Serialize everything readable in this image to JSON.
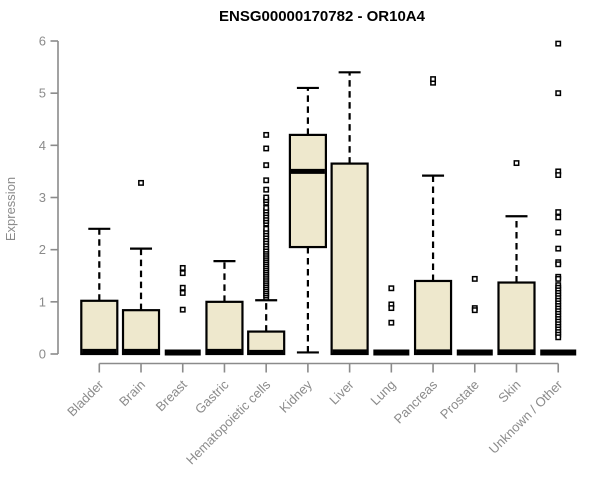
{
  "chart_data": {
    "type": "box",
    "title": "ENSG00000170782 - OR10A4",
    "xlabel": "",
    "ylabel": "Expression",
    "ylim": [
      0,
      6
    ],
    "yticks": [
      0,
      1,
      2,
      3,
      4,
      5,
      6
    ],
    "grid": false,
    "legend": false,
    "colors": {
      "box_fill": "#EEE8CD",
      "box_stroke": "#000000",
      "median": "#000000",
      "whisker": "#000000",
      "outlier_stroke": "#000000",
      "outlier_fill": "#FFFFFF",
      "axis": "#8B8B8B",
      "title": "#000000"
    },
    "categories": [
      "Bladder",
      "Brain",
      "Breast",
      "Gastric",
      "Hematopoietic cells",
      "Kidney",
      "Liver",
      "Lung",
      "Pancreas",
      "Prostate",
      "Skin",
      "Unknown / Other"
    ],
    "series": [
      {
        "category": "Bladder",
        "q1": 0,
        "median": 0.05,
        "q3": 1.02,
        "whisker_low": 0,
        "whisker_high": 2.4,
        "outliers": []
      },
      {
        "category": "Brain",
        "q1": 0,
        "median": 0.05,
        "q3": 0.84,
        "whisker_low": 0,
        "whisker_high": 2.02,
        "outliers": [
          3.28
        ]
      },
      {
        "category": "Breast",
        "q1": 0,
        "median": 0,
        "q3": 0,
        "whisker_low": 0,
        "whisker_high": 0,
        "outliers": [
          1.65,
          1.55,
          1.27,
          1.17,
          0.85
        ]
      },
      {
        "category": "Gastric",
        "q1": 0,
        "median": 0.05,
        "q3": 1.0,
        "whisker_low": 0,
        "whisker_high": 1.78,
        "outliers": []
      },
      {
        "category": "Hematopoietic cells",
        "q1": 0,
        "median": 0.03,
        "q3": 0.43,
        "whisker_low": 0,
        "whisker_high": 1.03,
        "outliers": [
          1.08,
          1.12,
          1.16,
          1.2,
          1.24,
          1.28,
          1.32,
          1.36,
          1.4,
          1.44,
          1.48,
          1.52,
          1.56,
          1.6,
          1.64,
          1.68,
          1.72,
          1.76,
          1.8,
          1.84,
          1.88,
          1.92,
          1.96,
          2.0,
          2.05,
          2.1,
          2.15,
          2.2,
          2.25,
          2.3,
          2.35,
          2.4,
          2.5,
          2.55,
          2.6,
          2.65,
          2.7,
          2.75,
          2.8,
          2.9,
          2.95,
          3.0,
          3.15,
          3.33,
          3.62,
          3.94,
          4.2
        ]
      },
      {
        "category": "Kidney",
        "q1": 2.05,
        "median": 3.5,
        "q3": 4.2,
        "whisker_low": 0.03,
        "whisker_high": 5.1,
        "outliers": []
      },
      {
        "category": "Liver",
        "q1": 0,
        "median": 0.04,
        "q3": 3.65,
        "whisker_low": 0,
        "whisker_high": 5.4,
        "outliers": []
      },
      {
        "category": "Lung",
        "q1": 0,
        "median": 0,
        "q3": 0,
        "whisker_low": 0,
        "whisker_high": 0,
        "outliers": [
          1.26,
          0.95,
          0.88,
          0.6
        ]
      },
      {
        "category": "Pancreas",
        "q1": 0,
        "median": 0.04,
        "q3": 1.4,
        "whisker_low": 0,
        "whisker_high": 3.42,
        "outliers": [
          5.2,
          5.27
        ]
      },
      {
        "category": "Prostate",
        "q1": 0,
        "median": 0,
        "q3": 0,
        "whisker_low": 0,
        "whisker_high": 0,
        "outliers": [
          1.44,
          0.88,
          0.84
        ]
      },
      {
        "category": "Skin",
        "q1": 0,
        "median": 0.04,
        "q3": 1.37,
        "whisker_low": 0,
        "whisker_high": 2.64,
        "outliers": [
          3.66
        ]
      },
      {
        "category": "Unknown / Other",
        "q1": 0,
        "median": 0,
        "q3": 0,
        "whisker_low": 0,
        "whisker_high": 0,
        "outliers": [
          5.95,
          5.0,
          3.5,
          3.43,
          2.72,
          2.62,
          2.33,
          2.02,
          1.76,
          1.72,
          1.48,
          1.44,
          1.32,
          1.27,
          1.22,
          1.17,
          1.12,
          1.07,
          1.02,
          0.97,
          0.92,
          0.87,
          0.82,
          0.77,
          0.72,
          0.67,
          0.62,
          0.57,
          0.52,
          0.47,
          0.42,
          0.37,
          0.32
        ]
      }
    ]
  }
}
